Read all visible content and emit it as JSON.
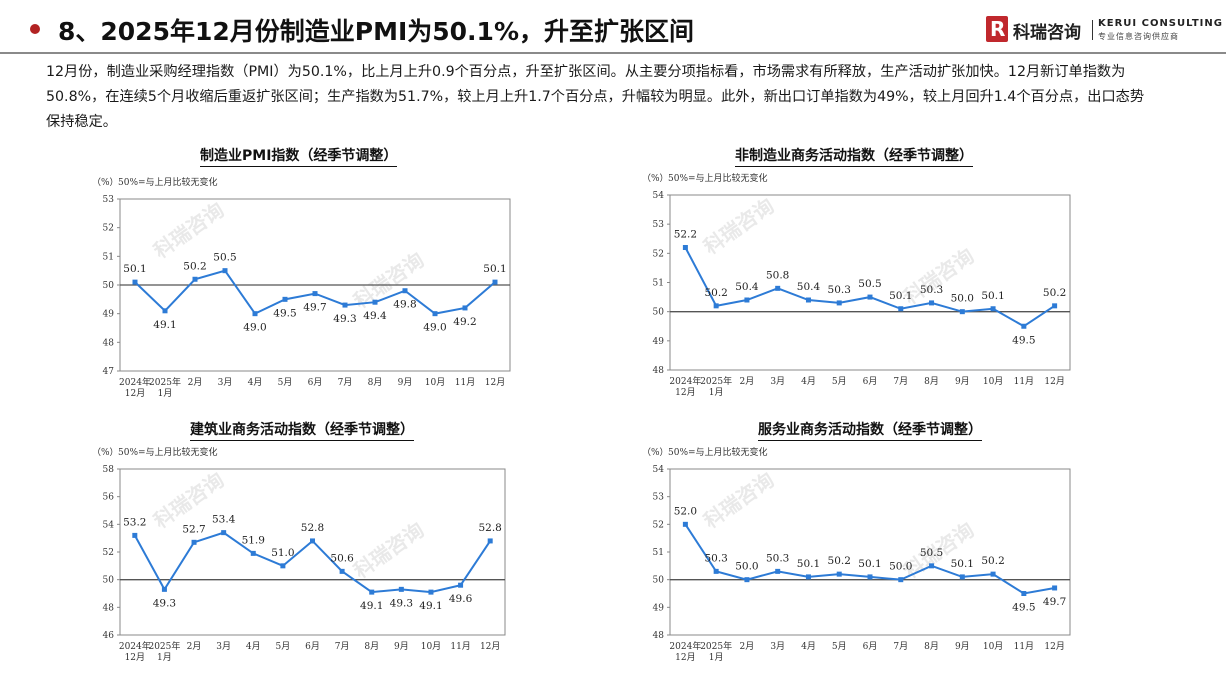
{
  "header": {
    "title": "8、2025年12月份制造业PMI为50.1%，升至扩张区间",
    "logo_mark": "R",
    "logo_cn": "科瑞咨询",
    "logo_en": "KERUI CONSULTING",
    "logo_sub": "专业信息咨询供应商"
  },
  "summary": "12月份，制造业采购经理指数（PMI）为50.1%，比上月上升0.9个百分点，升至扩张区间。从主要分项指标看，市场需求有所释放，生产活动扩张加快。12月新订单指数为50.8%，在连续5个月收缩后重返扩张区间；生产指数为51.7%，较上月上升1.7个百分点，升幅较为明显。此外，新出口订单指数为49%，较上月回升1.4个百分点，出口态势保持稳定。",
  "watermark": "科瑞咨询",
  "colors": {
    "line": "#2d7bd6",
    "accent": "#b22222",
    "baseline": "#555555"
  },
  "chart_data": [
    {
      "type": "line",
      "title": "制造业PMI指数（经季节调整）",
      "unit": "（%）",
      "note": "50%=与上月比较无变化",
      "categories": [
        "2024年\n12月",
        "2025年\n1月",
        "2月",
        "3月",
        "4月",
        "5月",
        "6月",
        "7月",
        "8月",
        "9月",
        "10月",
        "11月",
        "12月"
      ],
      "values": [
        50.1,
        49.1,
        50.2,
        50.5,
        49.0,
        49.5,
        49.7,
        49.3,
        49.4,
        49.8,
        49.0,
        49.2,
        50.1
      ],
      "labels": [
        "50.1",
        "49.1",
        "50.2",
        "50.5",
        "49.0",
        "49.5",
        "49.7",
        "49.3",
        "49.4",
        "49.8",
        "49.0",
        "49.2",
        "50.1"
      ],
      "label_pos": [
        "above",
        "below",
        "above",
        "above",
        "below",
        "below",
        "below",
        "below",
        "below",
        "below",
        "below",
        "below",
        "above"
      ],
      "ylim": [
        47,
        53
      ],
      "yticks": [
        47,
        48,
        49,
        50,
        51,
        52,
        53
      ],
      "baseline": 50
    },
    {
      "type": "line",
      "title": "非制造业商务活动指数（经季节调整）",
      "unit": "（%）",
      "note": "50%=与上月比较无变化",
      "categories": [
        "2024年\n12月",
        "2025年\n1月",
        "2月",
        "3月",
        "4月",
        "5月",
        "6月",
        "7月",
        "8月",
        "9月",
        "10月",
        "11月",
        "12月"
      ],
      "values": [
        52.2,
        50.2,
        50.4,
        50.8,
        50.4,
        50.3,
        50.5,
        50.1,
        50.3,
        50.0,
        50.1,
        49.5,
        50.2
      ],
      "labels": [
        "52.2",
        "50.2",
        "50.4",
        "50.8",
        "50.4",
        "50.3",
        "50.5",
        "50.1",
        "50.3",
        "50.0",
        "50.1",
        "49.5",
        "50.2"
      ],
      "label_pos": [
        "above",
        "above",
        "above",
        "above",
        "above",
        "above",
        "above",
        "above",
        "above",
        "above",
        "above",
        "below",
        "above"
      ],
      "ylim": [
        48,
        54
      ],
      "yticks": [
        48,
        49,
        50,
        51,
        52,
        53,
        54
      ],
      "baseline": 50
    },
    {
      "type": "line",
      "title": "建筑业商务活动指数（经季节调整）",
      "unit": "（%）",
      "note": "50%=与上月比较无变化",
      "categories": [
        "2024年\n12月",
        "2025年\n1月",
        "2月",
        "3月",
        "4月",
        "5月",
        "6月",
        "7月",
        "8月",
        "9月",
        "10月",
        "11月",
        "12月"
      ],
      "values": [
        53.2,
        49.3,
        52.7,
        53.4,
        51.9,
        51.0,
        52.8,
        50.6,
        49.1,
        49.3,
        49.1,
        49.6,
        52.8
      ],
      "labels": [
        "53.2",
        "49.3",
        "52.7",
        "53.4",
        "51.9",
        "51.0",
        "52.8",
        "50.6",
        "49.1",
        "49.3",
        "49.1",
        "49.6",
        "52.8"
      ],
      "label_pos": [
        "above",
        "below",
        "above",
        "above",
        "above",
        "above",
        "above",
        "above",
        "below",
        "below",
        "below",
        "below",
        "above"
      ],
      "ylim": [
        46,
        58
      ],
      "yticks": [
        46,
        48,
        50,
        52,
        54,
        56,
        58
      ],
      "baseline": 50
    },
    {
      "type": "line",
      "title": "服务业商务活动指数（经季节调整）",
      "unit": "（%）",
      "note": "50%=与上月比较无变化",
      "categories": [
        "2024年\n12月",
        "2025年\n1月",
        "2月",
        "3月",
        "4月",
        "5月",
        "6月",
        "7月",
        "8月",
        "9月",
        "10月",
        "11月",
        "12月"
      ],
      "values": [
        52.0,
        50.3,
        50.0,
        50.3,
        50.1,
        50.2,
        50.1,
        50.0,
        50.5,
        50.1,
        50.2,
        49.5,
        49.7
      ],
      "labels": [
        "52.0",
        "50.3",
        "50.0",
        "50.3",
        "50.1",
        "50.2",
        "50.1",
        "50.0",
        "50.5",
        "50.1",
        "50.2",
        "49.5",
        "49.7"
      ],
      "label_pos": [
        "above",
        "above",
        "above",
        "above",
        "above",
        "above",
        "above",
        "above",
        "above",
        "above",
        "above",
        "below",
        "below"
      ],
      "ylim": [
        48,
        54
      ],
      "yticks": [
        48,
        49,
        50,
        51,
        52,
        53,
        54
      ],
      "baseline": 50
    }
  ]
}
